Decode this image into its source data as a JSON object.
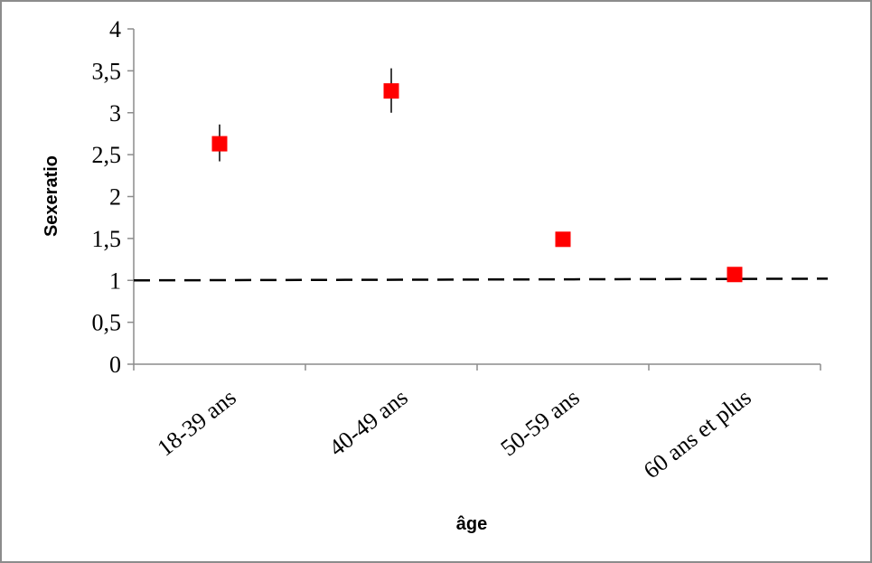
{
  "chart_data": {
    "type": "scatter",
    "title": "",
    "xlabel": "âge",
    "ylabel": "Sexeratio",
    "categories": [
      "18-39 ans",
      "40-49 ans",
      "50-59 ans",
      "60 ans et plus"
    ],
    "series": [
      {
        "values": [
          2.63,
          3.26,
          1.49,
          1.07
        ],
        "error_low": [
          2.42,
          3.0,
          1.49,
          1.07
        ],
        "error_high": [
          2.86,
          3.53,
          1.49,
          1.07
        ],
        "marker": "square",
        "color": "#ff0000"
      }
    ],
    "reference_line": {
      "y": 1,
      "style": "dashed",
      "color": "#000000"
    },
    "ylim": [
      0,
      4
    ],
    "yticks": [
      {
        "value": 0,
        "label": "0"
      },
      {
        "value": 0.5,
        "label": "0,5"
      },
      {
        "value": 1,
        "label": "1"
      },
      {
        "value": 1.5,
        "label": "1,5"
      },
      {
        "value": 2,
        "label": "2"
      },
      {
        "value": 2.5,
        "label": "2,5"
      },
      {
        "value": 3,
        "label": "3"
      },
      {
        "value": 3.5,
        "label": "3,5"
      },
      {
        "value": 4,
        "label": "4"
      }
    ],
    "grid": false,
    "legend": "none"
  }
}
